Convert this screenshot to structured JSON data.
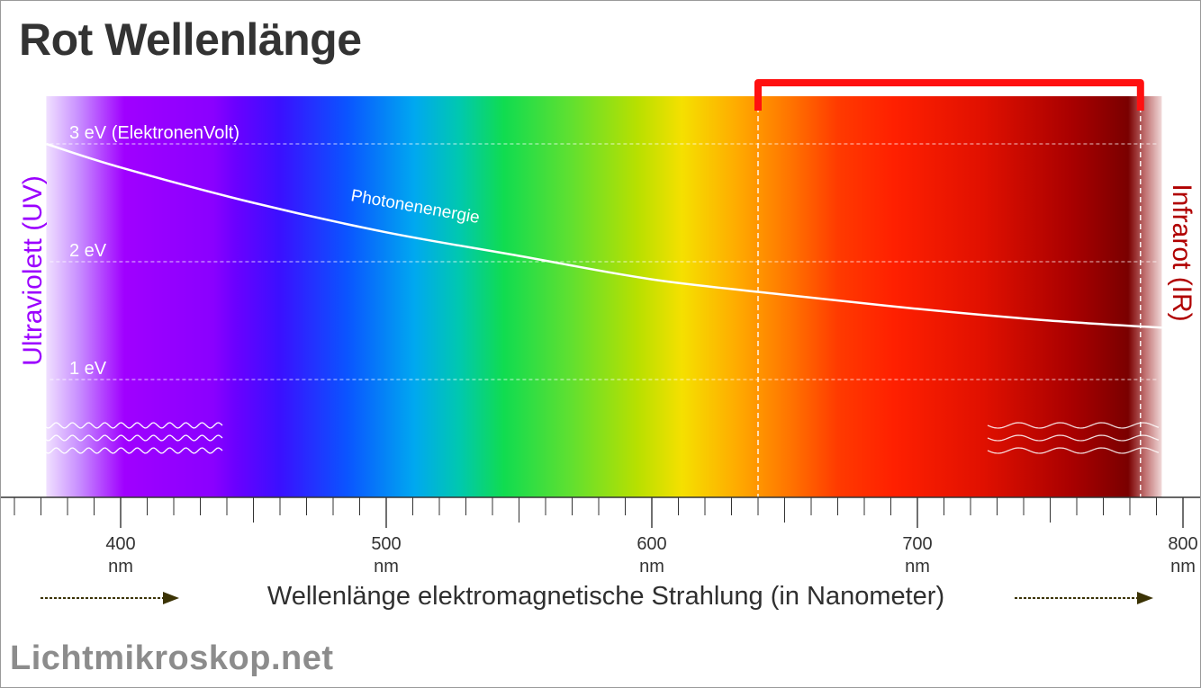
{
  "title": "Rot Wellenlänge",
  "left_label": "Ultraviolett (UV)",
  "right_label": "Infrarot (IR)",
  "footer_brand": "Lichtmikroskop.net",
  "colors": {
    "uv": "#9b00ff",
    "ir": "#b00000",
    "bracket": "#ff1010",
    "axis": "#333333",
    "arrow": "#3b3305"
  },
  "chart_data": {
    "type": "line",
    "title": "Rot Wellenlänge",
    "xlabel": "Wellenlänge elektromagnetische Strahlung (in Nanometer)",
    "xlim": [
      360,
      810
    ],
    "x_ticks": [
      {
        "value": 400,
        "label": "400",
        "unit": "nm"
      },
      {
        "value": 500,
        "label": "500",
        "unit": "nm"
      },
      {
        "value": 600,
        "label": "600",
        "unit": "nm"
      },
      {
        "value": 700,
        "label": "700",
        "unit": "nm"
      },
      {
        "value": 800,
        "label": "800",
        "unit": "nm"
      }
    ],
    "spectrum_range": [
      372,
      792
    ],
    "energy_levels": [
      {
        "value": 3,
        "label": "3 eV (ElektronenVolt)"
      },
      {
        "value": 2,
        "label": "2 eV"
      },
      {
        "value": 1,
        "label": "1 eV"
      }
    ],
    "ylim": [
      0,
      3.4
    ],
    "series": [
      {
        "name": "Photonenenergie",
        "x": [
          372,
          400,
          450,
          500,
          550,
          600,
          650,
          700,
          750,
          792
        ],
        "y": [
          3.0,
          2.8,
          2.5,
          2.25,
          2.05,
          1.85,
          1.72,
          1.6,
          1.5,
          1.44
        ]
      }
    ],
    "highlight": {
      "label": "Rot",
      "range": [
        640,
        784
      ]
    }
  }
}
